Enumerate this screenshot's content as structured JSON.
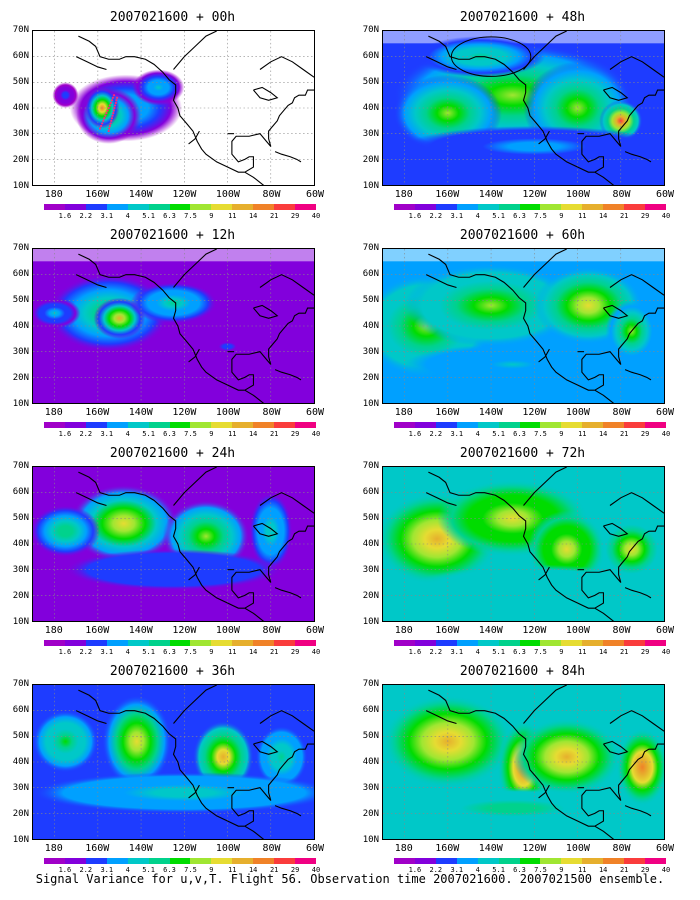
{
  "caption": "Signal Variance for u,v,T. Flight 56. Observation time 2007021600. 2007021500 ensemble.",
  "lat_labels": [
    "70N",
    "60N",
    "50N",
    "40N",
    "30N",
    "20N",
    "10N"
  ],
  "lon_labels": [
    "180",
    "160W",
    "140W",
    "120W",
    "100W",
    "80W",
    "60W"
  ],
  "colorbar_labels": [
    "1.6",
    "2.2",
    "3.1",
    "4",
    "5.1",
    "6.3",
    "7.5",
    "9",
    "11",
    "14",
    "21",
    "29",
    "40"
  ],
  "colorbar_colors": [
    "#a000c8",
    "#8200dc",
    "#1e3cff",
    "#00a0ff",
    "#00c8c8",
    "#00d28c",
    "#00dc00",
    "#a0e632",
    "#e6dc32",
    "#e6af2d",
    "#f08228",
    "#fa3c3c",
    "#f00082"
  ],
  "panels": [
    {
      "title": "2007021600 + 00h",
      "level": 0
    },
    {
      "title": "2007021600 + 48h",
      "level": 4
    },
    {
      "title": "2007021600 + 12h",
      "level": 1
    },
    {
      "title": "2007021600 + 60h",
      "level": 5
    },
    {
      "title": "2007021600 + 24h",
      "level": 2
    },
    {
      "title": "2007021600 + 72h",
      "level": 6
    },
    {
      "title": "2007021600 + 36h",
      "level": 3
    },
    {
      "title": "2007021600 + 84h",
      "level": 7
    }
  ]
}
